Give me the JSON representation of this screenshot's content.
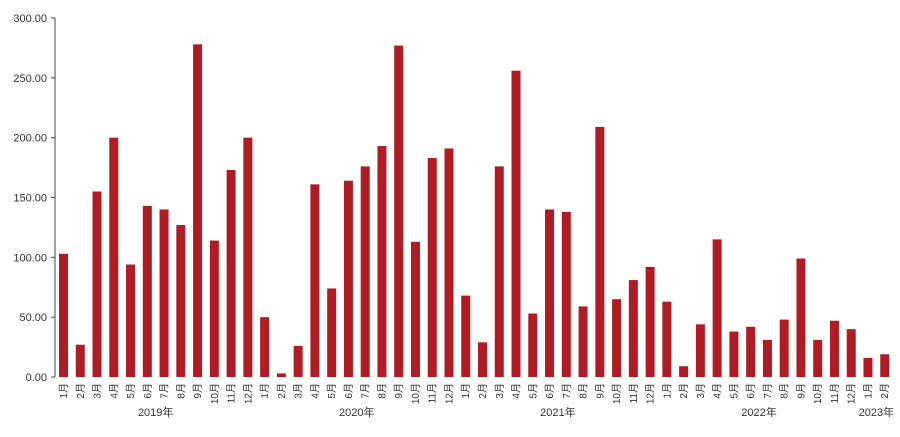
{
  "chart_data": {
    "type": "bar",
    "title": "",
    "xlabel": "",
    "ylabel": "",
    "ylim": [
      0,
      300
    ],
    "yticks": [
      "0.00",
      "50.00",
      "100.00",
      "150.00",
      "200.00",
      "250.00",
      "300.00"
    ],
    "grid": false,
    "legend": "none",
    "bar_color": "#B01C24",
    "categories": [
      "1月",
      "2月",
      "3月",
      "4月",
      "5月",
      "6月",
      "7月",
      "8月",
      "9月",
      "10月",
      "11月",
      "12月",
      "1月",
      "2月",
      "3月",
      "4月",
      "5月",
      "6月",
      "7月",
      "8月",
      "9月",
      "10月",
      "11月",
      "12月",
      "1月",
      "2月",
      "3月",
      "4月",
      "5月",
      "6月",
      "7月",
      "8月",
      "9月",
      "10月",
      "11月",
      "12月",
      "1月",
      "2月",
      "3月",
      "4月",
      "5月",
      "6月",
      "7月",
      "8月",
      "9月",
      "10月",
      "11月",
      "12月",
      "1月",
      "2月"
    ],
    "years": [
      {
        "label": "2019年",
        "start": 0,
        "count": 12
      },
      {
        "label": "2020年",
        "start": 12,
        "count": 12
      },
      {
        "label": "2021年",
        "start": 24,
        "count": 12
      },
      {
        "label": "2022年",
        "start": 36,
        "count": 12
      },
      {
        "label": "2023年",
        "start": 48,
        "count": 2
      }
    ],
    "values": [
      103,
      27,
      155,
      200,
      94,
      143,
      140,
      127,
      278,
      114,
      173,
      200,
      50,
      3,
      26,
      161,
      74,
      164,
      176,
      193,
      277,
      113,
      183,
      191,
      68,
      29,
      176,
      256,
      53,
      140,
      138,
      59,
      209,
      65,
      81,
      92,
      63,
      9,
      44,
      115,
      38,
      42,
      31,
      48,
      99,
      31,
      47,
      40,
      16,
      19
    ]
  }
}
